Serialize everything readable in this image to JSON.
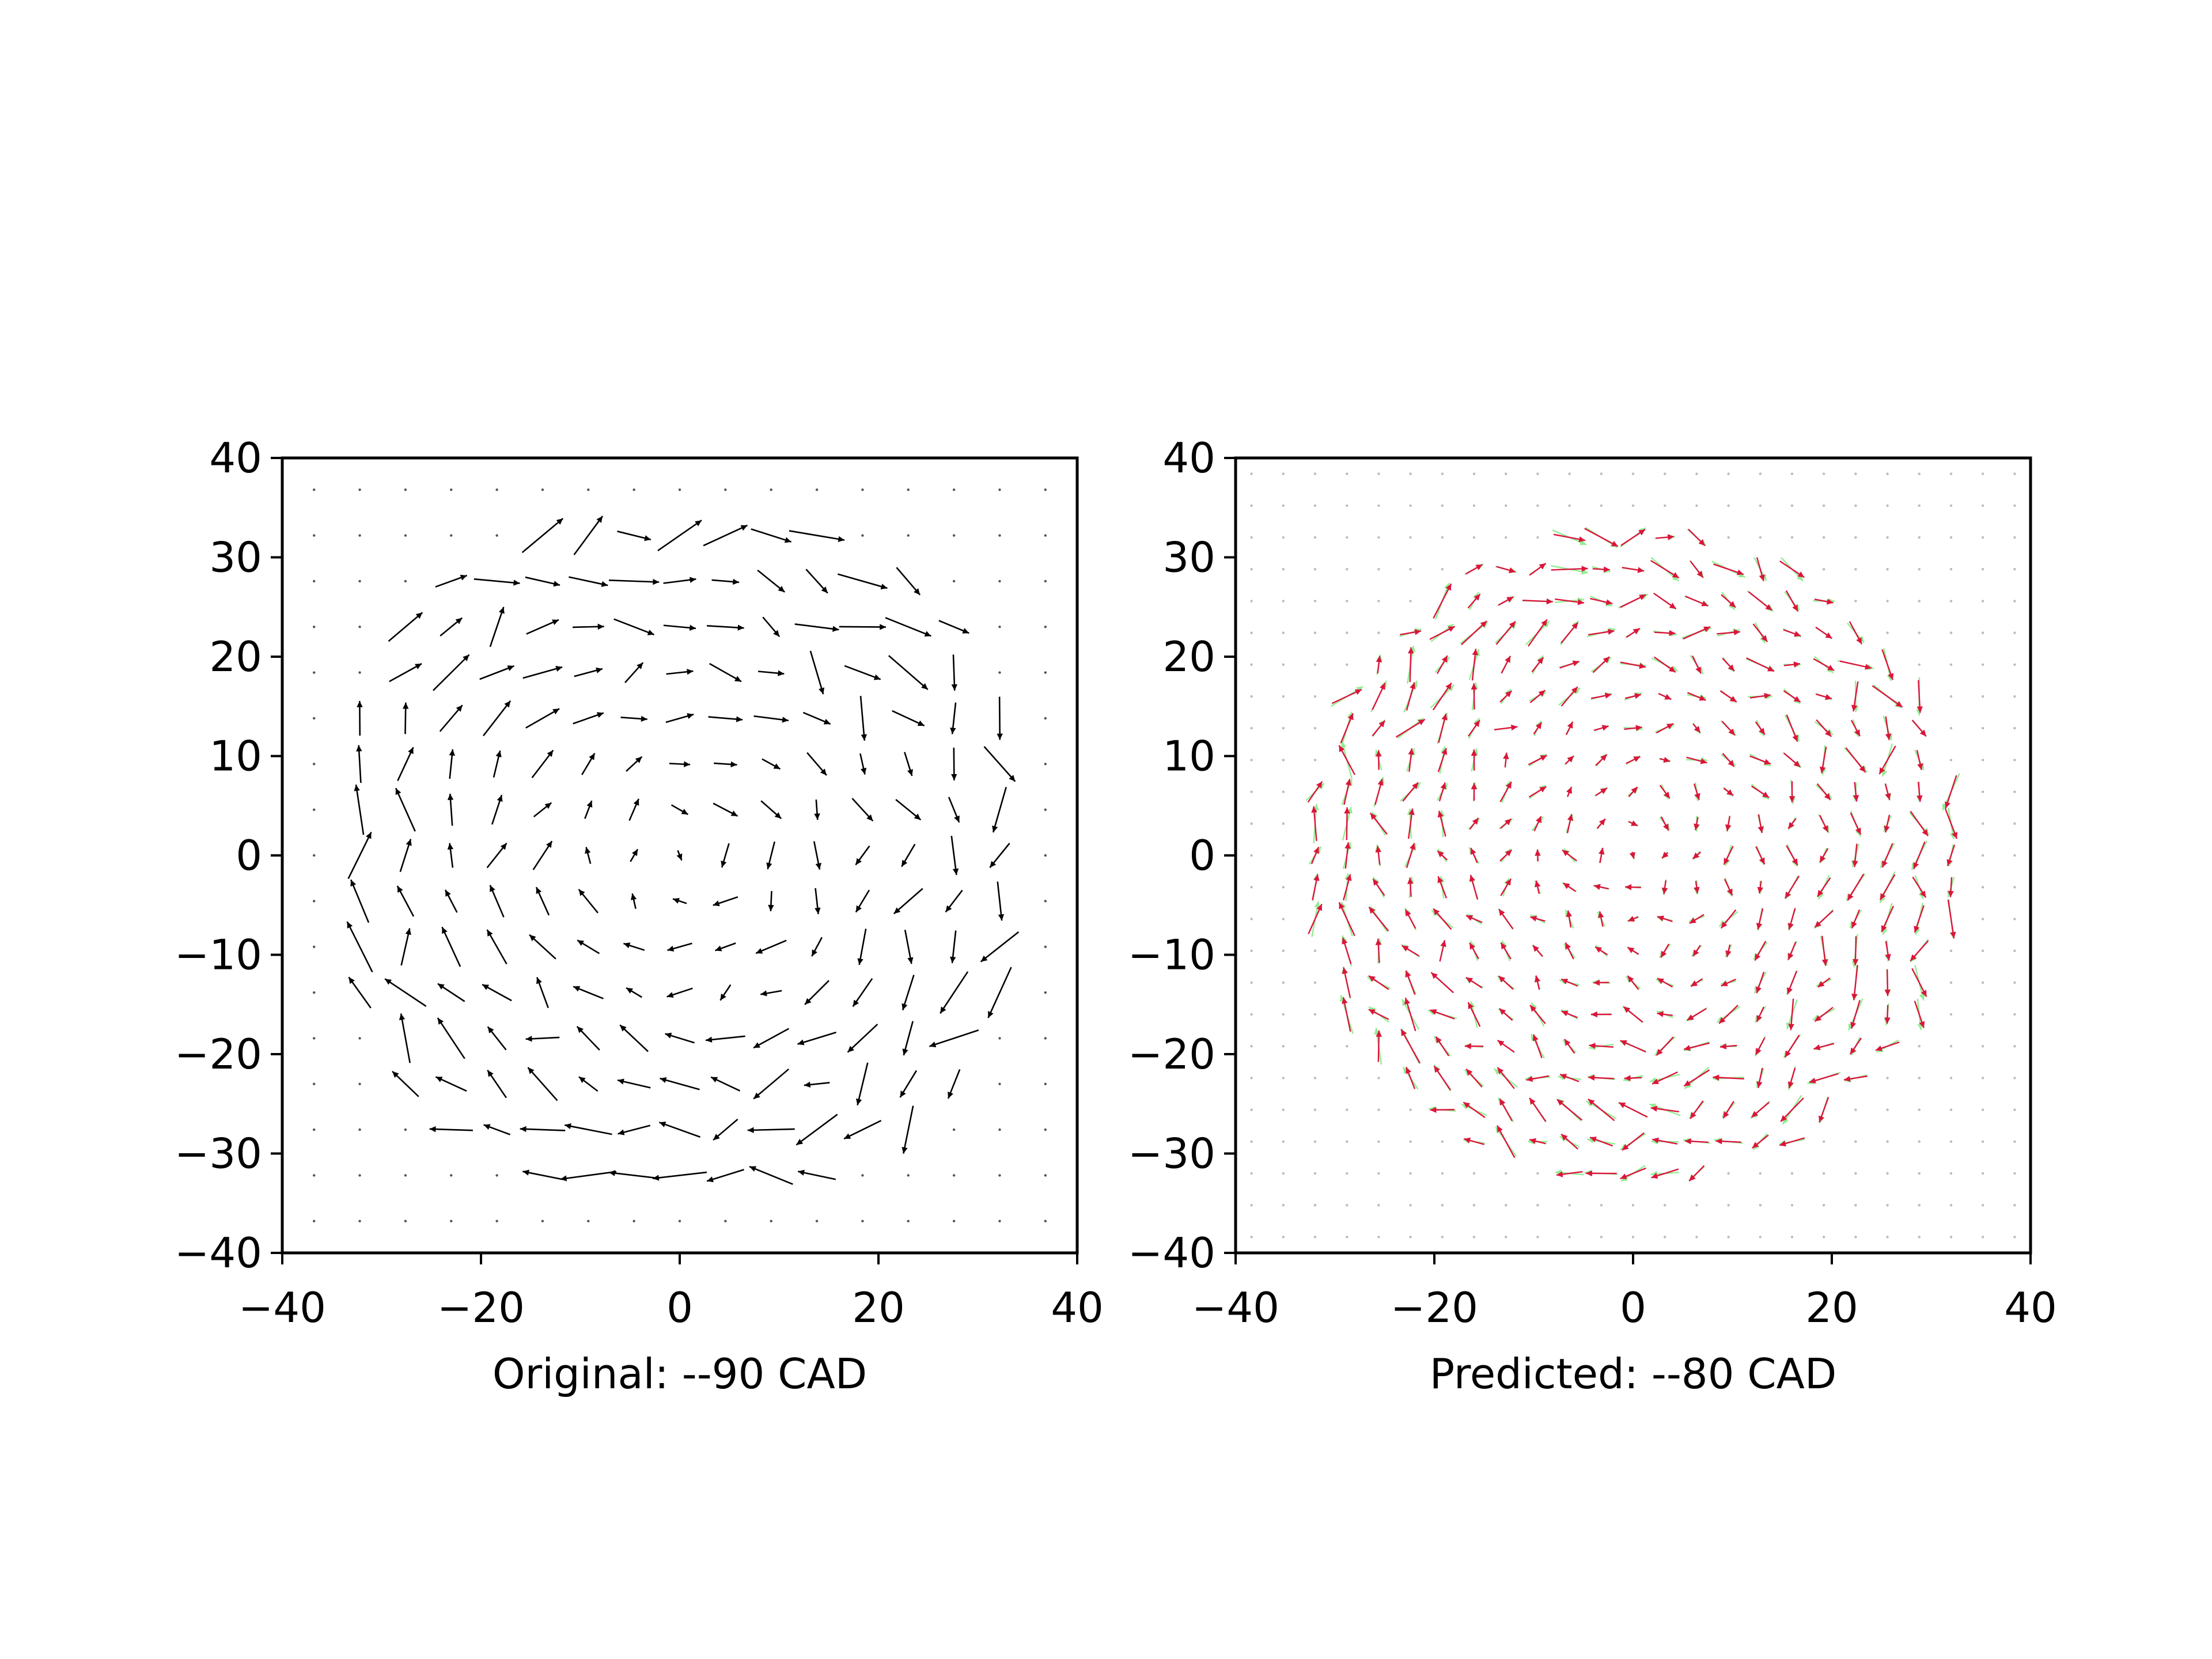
{
  "figure": {
    "background": "#ffffff",
    "panel_count": 2
  },
  "chart_data": [
    {
      "type": "quiver",
      "xlabel": "Original: --90 CAD",
      "ylabel": "",
      "title": "",
      "xlim": [
        -40,
        40
      ],
      "ylim": [
        -40,
        40
      ],
      "xticks": [
        "−40",
        "−20",
        "0",
        "20",
        "40"
      ],
      "yticks": [
        "40",
        "30",
        "20",
        "10",
        "0",
        "−10",
        "−20",
        "−30",
        "−40"
      ],
      "grid": false,
      "field": {
        "center": [
          0,
          0
        ],
        "radius": 36,
        "grid_step": 4.6,
        "rotation": "clockwise",
        "stroke_length_scale": 0.45
      },
      "series": [
        {
          "color": "#000000"
        }
      ]
    },
    {
      "type": "quiver",
      "xlabel": "Predicted: --80 CAD",
      "ylabel": "",
      "title": "",
      "xlim": [
        -40,
        40
      ],
      "ylim": [
        -40,
        40
      ],
      "xticks": [
        "−40",
        "−20",
        "0",
        "20",
        "40"
      ],
      "yticks": [
        "40",
        "30",
        "20",
        "10",
        "0",
        "−10",
        "−20",
        "−30",
        "−40"
      ],
      "grid": false,
      "field": {
        "center": [
          0,
          0
        ],
        "radius": 33,
        "grid_step": 3.2,
        "rotation": "clockwise",
        "stroke_length_scale": 0.45
      },
      "series": [
        {
          "color": "#90ee90"
        },
        {
          "color": "#dc143c"
        }
      ]
    }
  ]
}
